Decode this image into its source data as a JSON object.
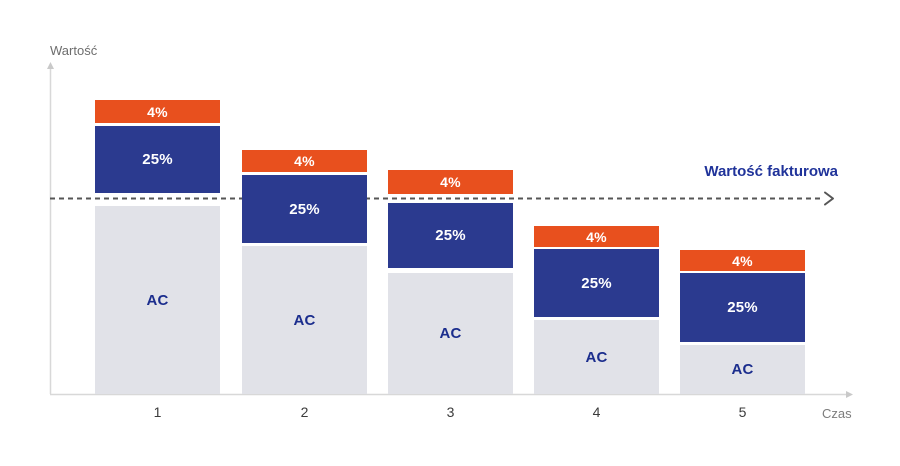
{
  "axes": {
    "y_label": "Wartość",
    "x_label": "Czas"
  },
  "invoice_line": {
    "label": "Wartość fakturowa",
    "value": 196
  },
  "colors": {
    "segments": {
      "ac": "#e1e2e8",
      "pct25": "#2b3a8f",
      "pct4": "#e8501e"
    },
    "segment_label_light": "#ffffff",
    "segment_label_navy": "#1b2d8d",
    "invoice_label": "#20339a",
    "dashed_line": "#565656",
    "axis_line": "#d8d8d8",
    "axis_text_muted": "#6d6d6d",
    "category_text": "#3b3b3b",
    "background": "#ffffff"
  },
  "chart_data": {
    "type": "bar",
    "subtype": "stacked",
    "title": "",
    "xlabel": "Czas",
    "ylabel": "Wartość",
    "grid": false,
    "legend": "none (labels inside segments)",
    "categories": [
      "1",
      "2",
      "3",
      "4",
      "5"
    ],
    "value_units": "schematic units (baseline = 0, no numeric axis shown)",
    "ylim": [
      0,
      330
    ],
    "reference_line": {
      "label": "Wartość fakturowa",
      "value": 196,
      "style": "dashed horizontal arrow"
    },
    "series": [
      {
        "name": "AC",
        "role": "ac",
        "values": [
          188,
          148,
          121,
          74,
          49
        ]
      },
      {
        "name": "25%",
        "role": "pct25",
        "values": [
          67,
          68,
          65,
          68,
          69
        ]
      },
      {
        "name": "4%",
        "role": "pct4",
        "values": [
          23,
          22,
          24,
          21,
          21
        ]
      }
    ],
    "bars": [
      {
        "category": "1",
        "segments": [
          {
            "name": "ac",
            "label": "AC",
            "from": 0,
            "to": 188
          },
          {
            "name": "pct25",
            "label": "25%",
            "from": 201,
            "to": 268
          },
          {
            "name": "pct4",
            "label": "4%",
            "from": 271,
            "to": 294
          }
        ]
      },
      {
        "category": "2",
        "segments": [
          {
            "name": "ac",
            "label": "AC",
            "from": 0,
            "to": 148
          },
          {
            "name": "pct25",
            "label": "25%",
            "from": 151,
            "to": 219
          },
          {
            "name": "pct4",
            "label": "4%",
            "from": 222,
            "to": 244
          }
        ]
      },
      {
        "category": "3",
        "segments": [
          {
            "name": "ac",
            "label": "AC",
            "from": 0,
            "to": 121
          },
          {
            "name": "pct25",
            "label": "25%",
            "from": 126,
            "to": 191
          },
          {
            "name": "pct4",
            "label": "4%",
            "from": 200,
            "to": 224
          }
        ]
      },
      {
        "category": "4",
        "segments": [
          {
            "name": "ac",
            "label": "AC",
            "from": 0,
            "to": 74
          },
          {
            "name": "pct25",
            "label": "25%",
            "from": 77,
            "to": 145
          },
          {
            "name": "pct4",
            "label": "4%",
            "from": 147,
            "to": 168
          }
        ]
      },
      {
        "category": "5",
        "segments": [
          {
            "name": "ac",
            "label": "AC",
            "from": 0,
            "to": 49
          },
          {
            "name": "pct25",
            "label": "25%",
            "from": 52,
            "to": 121
          },
          {
            "name": "pct4",
            "label": "4%",
            "from": 123,
            "to": 144
          }
        ]
      }
    ]
  }
}
